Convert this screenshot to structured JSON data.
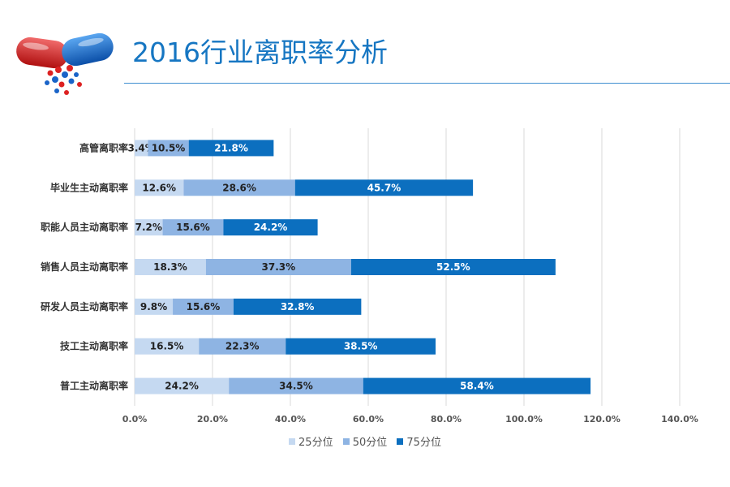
{
  "header": {
    "title": "2016行业离职率分析"
  },
  "icons": {
    "logo": "capsule-pills-icon"
  },
  "chart_data": {
    "type": "bar",
    "orientation": "horizontal",
    "stacked": true,
    "categories": [
      "高管离职率",
      "毕业生主动离职率",
      "职能人员主动离职率",
      "销售人员主动离职率",
      "研发人员主动离职率",
      "技工主动离职率",
      "普工主动离职率"
    ],
    "series": [
      {
        "name": "25分位",
        "color": "#c5d9f1",
        "values": [
          3.4,
          12.6,
          7.2,
          18.3,
          9.8,
          16.5,
          24.2
        ],
        "labels": [
          "3.4%",
          "12.6%",
          "7.2%",
          "18.3%",
          "9.8%",
          "16.5%",
          "24.2%"
        ]
      },
      {
        "name": "50分位",
        "color": "#8eb4e3",
        "values": [
          10.5,
          28.6,
          15.6,
          37.3,
          15.6,
          22.3,
          34.5
        ],
        "labels": [
          "10.5%",
          "28.6%",
          "15.6%",
          "37.3%",
          "15.6%",
          "22.3%",
          "34.5%"
        ]
      },
      {
        "name": "75分位",
        "color": "#0c6fbf",
        "values": [
          21.8,
          45.7,
          24.2,
          52.5,
          32.8,
          38.5,
          58.4
        ],
        "labels": [
          "21.8%",
          "45.7%",
          "24.2%",
          "52.5%",
          "32.8%",
          "38.5%",
          "58.4%"
        ]
      }
    ],
    "xlim": [
      0,
      140
    ],
    "xticks": [
      "0.0%",
      "20.0%",
      "40.0%",
      "60.0%",
      "80.0%",
      "100.0%",
      "120.0%",
      "140.0%"
    ],
    "grid": true,
    "legend_position": "bottom"
  }
}
